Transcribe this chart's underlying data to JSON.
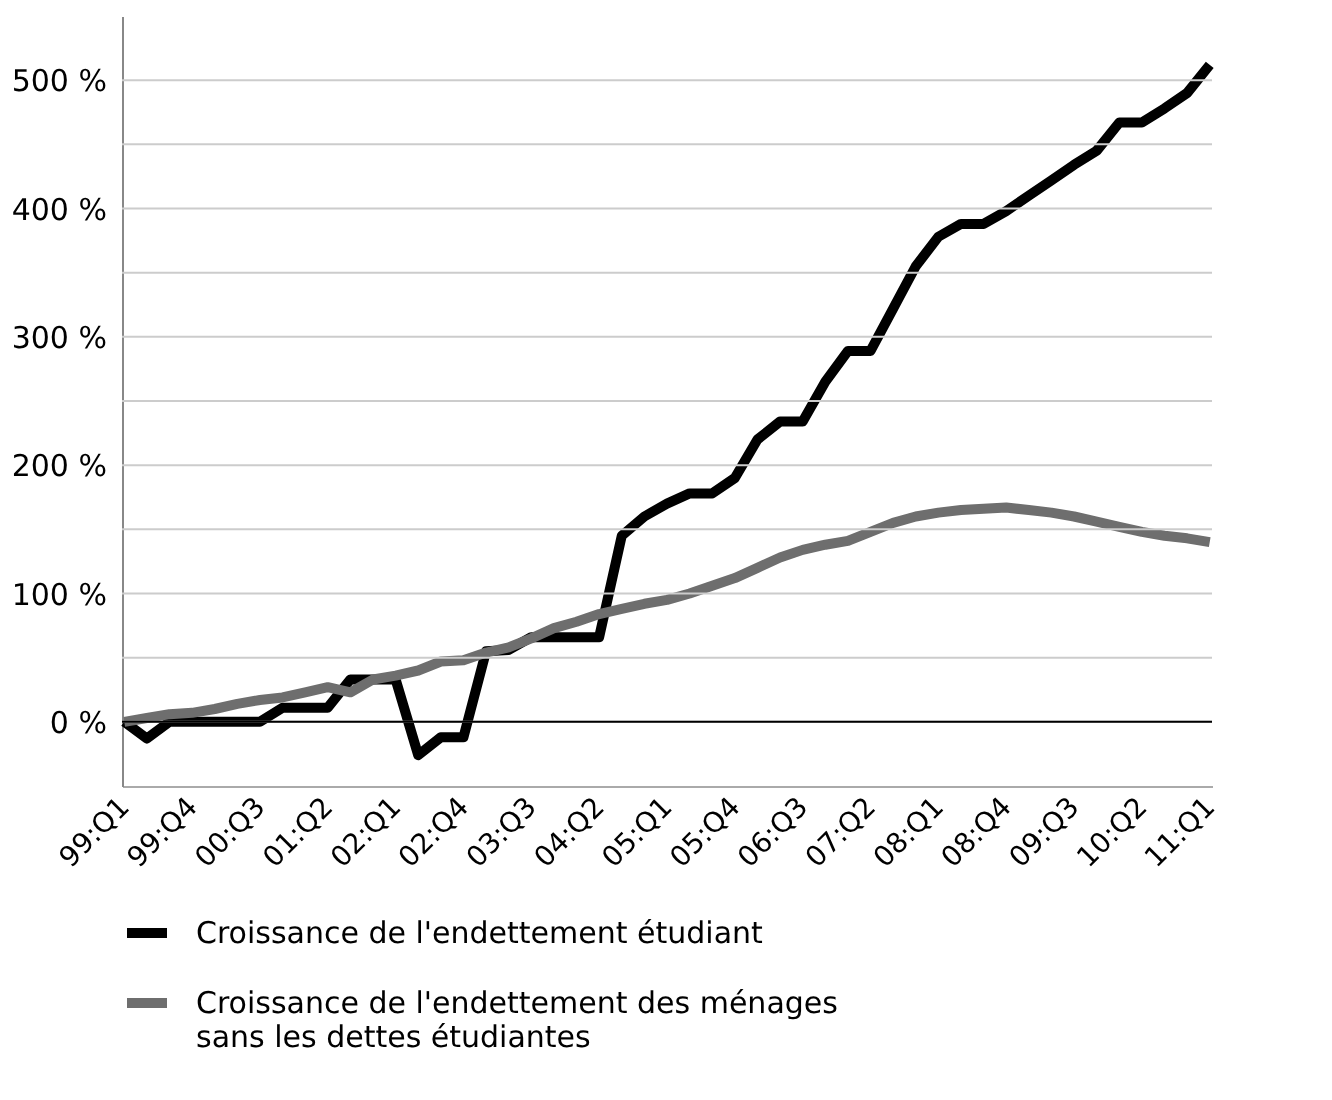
{
  "chart_data": {
    "type": "line",
    "categories": [
      "99:Q1",
      null,
      null,
      "99:Q4",
      null,
      null,
      "00:Q3",
      null,
      null,
      "01:Q2",
      null,
      null,
      "02:Q1",
      null,
      null,
      "02:Q4",
      null,
      null,
      "03:Q3",
      null,
      null,
      "04:Q2",
      null,
      null,
      "05:Q1",
      null,
      null,
      "05:Q4",
      null,
      null,
      "06:Q3",
      null,
      null,
      "07:Q2",
      null,
      null,
      "08:Q1",
      null,
      null,
      "08:Q4",
      null,
      null,
      "09:Q3",
      null,
      null,
      "10:Q2",
      null,
      null,
      "11:Q1"
    ],
    "series": [
      {
        "name": "Croissance de l'endettement étudiant",
        "color": "#000000",
        "values": [
          0,
          -13,
          0,
          0,
          0,
          0,
          0,
          11,
          11,
          11,
          33,
          33,
          33,
          -26,
          -12,
          -12,
          55,
          56,
          66,
          66,
          66,
          66,
          145,
          160,
          170,
          178,
          178,
          190,
          220,
          234,
          234,
          265,
          289,
          289,
          322,
          355,
          378,
          388,
          388,
          398,
          410,
          422,
          434,
          445,
          467,
          467,
          478,
          490,
          512
        ]
      },
      {
        "name": "Croissance de l'endettement des ménages sans les dettes étudiantes",
        "color": "#6e6e6e",
        "values": [
          0,
          3,
          6,
          7,
          10,
          14,
          17,
          19,
          23,
          27,
          23,
          33,
          36,
          40,
          47,
          48,
          54,
          58,
          65,
          73,
          78,
          84,
          88,
          92,
          95,
          100,
          106,
          112,
          120,
          128,
          134,
          138,
          141,
          148,
          155,
          160,
          163,
          165,
          166,
          167,
          165,
          163,
          160,
          156,
          152,
          148,
          145,
          143,
          140
        ]
      }
    ],
    "ylim": [
      -50,
      550
    ],
    "yticks": [
      {
        "value": 0,
        "label": "0 %"
      },
      {
        "value": 50,
        "label": null
      },
      {
        "value": 100,
        "label": "100 %"
      },
      {
        "value": 150,
        "label": null
      },
      {
        "value": 200,
        "label": "200 %"
      },
      {
        "value": 250,
        "label": null
      },
      {
        "value": 300,
        "label": "300 %"
      },
      {
        "value": 350,
        "label": null
      },
      {
        "value": 400,
        "label": "400 %"
      },
      {
        "value": 450,
        "label": null
      },
      {
        "value": 500,
        "label": "500 %"
      }
    ],
    "ref_lines": [
      {
        "axis": "y",
        "value": 0,
        "color": "#000000"
      }
    ],
    "grid": "y",
    "legend": "bottom",
    "marker": "none",
    "line_style": "solid"
  }
}
